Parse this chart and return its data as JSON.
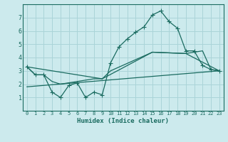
{
  "xlabel": "Humidex (Indice chaleur)",
  "bg_color": "#cceaed",
  "grid_color": "#aad4d8",
  "line_color": "#1a6b60",
  "xlim": [
    -0.5,
    23.5
  ],
  "ylim": [
    0,
    8
  ],
  "xticks": [
    0,
    1,
    2,
    3,
    4,
    5,
    6,
    7,
    8,
    9,
    10,
    11,
    12,
    13,
    14,
    15,
    16,
    17,
    18,
    19,
    20,
    21,
    22,
    23
  ],
  "yticks": [
    1,
    2,
    3,
    4,
    5,
    6,
    7
  ],
  "line1_x": [
    0,
    1,
    2,
    3,
    4,
    5,
    6,
    7,
    8,
    9,
    10,
    11,
    12,
    13,
    14,
    15,
    16,
    17,
    18,
    19,
    20,
    21,
    22,
    23
  ],
  "line1_y": [
    3.3,
    2.7,
    2.7,
    1.4,
    1.0,
    1.9,
    2.1,
    1.0,
    1.4,
    1.2,
    3.6,
    4.8,
    5.4,
    5.9,
    6.3,
    7.2,
    7.5,
    6.7,
    6.2,
    4.5,
    4.5,
    3.4,
    3.1,
    3.0
  ],
  "line2_x": [
    0,
    1,
    2,
    3,
    4,
    5,
    6,
    7,
    8,
    9,
    10,
    15,
    19,
    20,
    21,
    22,
    23
  ],
  "line2_y": [
    3.3,
    2.7,
    2.7,
    2.2,
    2.0,
    2.1,
    2.2,
    2.3,
    2.4,
    2.4,
    3.0,
    4.4,
    4.3,
    4.4,
    4.5,
    3.1,
    3.0
  ],
  "line3_x": [
    0,
    23
  ],
  "line3_y": [
    1.8,
    3.0
  ],
  "line4_x": [
    0,
    9,
    15,
    19,
    23
  ],
  "line4_y": [
    3.3,
    2.4,
    4.4,
    4.3,
    3.0
  ]
}
